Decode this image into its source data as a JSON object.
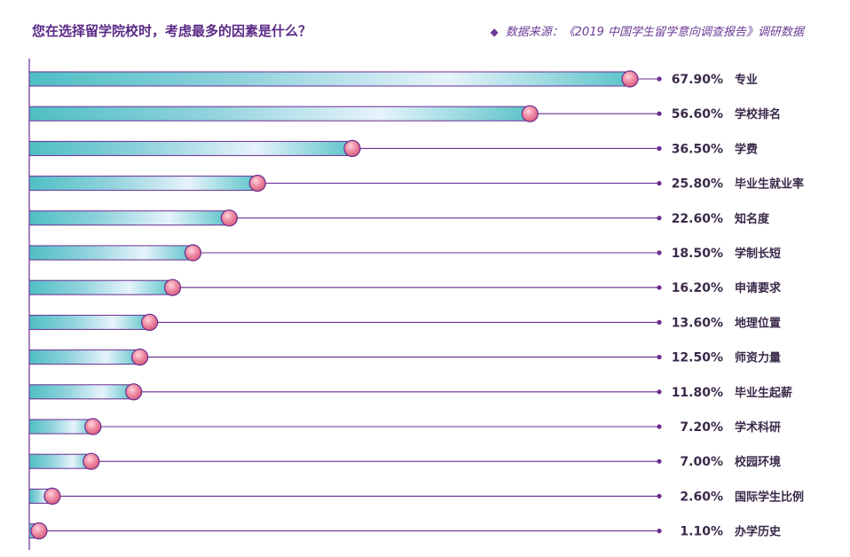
{
  "header": {
    "title": "您在选择留学院校时，考虑最多的因素是什么？",
    "source_icon": "diamond-icon",
    "source": "数据来源：《2019 中国学生留学意向调查报告》调研数据"
  },
  "colors": {
    "accent_purple": "#6a2c91",
    "bar_teal": "#4fbfc4",
    "bar_light": "#e6f3fb",
    "marker_pink": "#ec7e98",
    "text_dark": "#3a2a4a"
  },
  "chart_data": {
    "type": "bar",
    "orientation": "horizontal",
    "title": "您在选择留学院校时，考虑最多的因素是什么？",
    "value_suffix": "%",
    "xlim": [
      0,
      71
    ],
    "categories": [
      "专业",
      "学校排名",
      "学费",
      "毕业生就业率",
      "知名度",
      "学制长短",
      "申请要求",
      "地理位置",
      "师资力量",
      "毕业生起薪",
      "学术科研",
      "校园环境",
      "国际学生比例",
      "办学历史"
    ],
    "values": [
      67.9,
      56.6,
      36.5,
      25.8,
      22.6,
      18.5,
      16.2,
      13.6,
      12.5,
      11.8,
      7.2,
      7.0,
      2.6,
      1.1
    ],
    "value_labels": [
      "67.90%",
      "56.60%",
      "36.50%",
      "25.80%",
      "22.60%",
      "18.50%",
      "16.20%",
      "13.60%",
      "12.50%",
      "11.80%",
      "7.20%",
      "7.00%",
      "2.60%",
      "1.10%"
    ],
    "grid": false,
    "legend": "none"
  }
}
